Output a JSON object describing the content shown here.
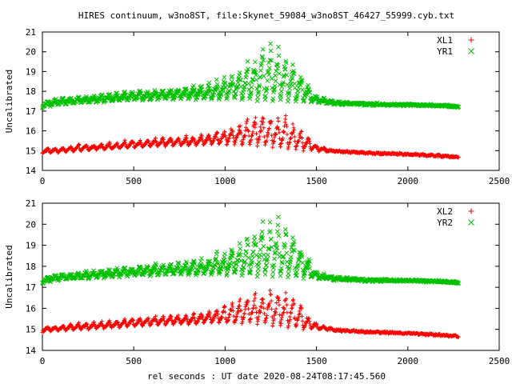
{
  "figure": {
    "title": "HIRES continuum, w3no8ST, file:Skynet_59084_w3no8ST_46427_55999.cyb.txt",
    "xlabel": "rel seconds : UT date 2020-08-24T08:17:45.560"
  },
  "colors": {
    "red": "#ff0000",
    "green": "#00c000"
  },
  "chart_data": [
    {
      "type": "scatter",
      "ylabel": "Uncalibrated",
      "xlim": [
        0,
        2500
      ],
      "ylim": [
        14,
        21
      ],
      "xticks": [
        "0",
        "500",
        "1000",
        "1500",
        "2000",
        "2500"
      ],
      "yticks": [
        "14",
        "15",
        "16",
        "17",
        "18",
        "19",
        "20",
        "21"
      ],
      "legend_position": "top-right",
      "x": [
        0,
        100,
        200,
        300,
        400,
        500,
        600,
        700,
        800,
        900,
        1000,
        1050,
        1100,
        1150,
        1200,
        1250,
        1300,
        1350,
        1400,
        1450,
        1500,
        1600,
        1800,
        2000,
        2200,
        2280
      ],
      "series": [
        {
          "name": "XL1",
          "marker": "+",
          "color": "red",
          "baseline": [
            14.9,
            14.9,
            15.0,
            15.05,
            15.1,
            15.15,
            15.2,
            15.25,
            15.25,
            15.3,
            15.3,
            15.3,
            15.3,
            15.3,
            15.25,
            15.2,
            15.15,
            15.1,
            15.05,
            15.0,
            15.0,
            14.95,
            14.85,
            14.8,
            14.7,
            14.65
          ],
          "peak": [
            15.1,
            15.2,
            15.3,
            15.35,
            15.45,
            15.55,
            15.65,
            15.7,
            15.75,
            15.9,
            16.2,
            16.4,
            16.6,
            16.85,
            17.0,
            17.05,
            17.0,
            16.8,
            16.4,
            15.9,
            15.3,
            15.0,
            14.9,
            14.85,
            14.75,
            14.7
          ]
        },
        {
          "name": "YR1",
          "marker": "x",
          "color": "green",
          "baseline": [
            17.2,
            17.35,
            17.4,
            17.45,
            17.5,
            17.55,
            17.55,
            17.6,
            17.6,
            17.6,
            17.6,
            17.6,
            17.55,
            17.55,
            17.55,
            17.5,
            17.5,
            17.5,
            17.45,
            17.45,
            17.4,
            17.35,
            17.3,
            17.3,
            17.25,
            17.2
          ],
          "peak": [
            17.5,
            17.7,
            17.75,
            17.85,
            17.95,
            18.05,
            18.15,
            18.25,
            18.3,
            18.45,
            18.9,
            19.1,
            19.5,
            19.9,
            20.35,
            20.6,
            20.45,
            20.05,
            19.4,
            18.6,
            17.8,
            17.5,
            17.4,
            17.35,
            17.3,
            17.25
          ]
        }
      ]
    },
    {
      "type": "scatter",
      "ylabel": "Uncalibrated",
      "xlim": [
        0,
        2500
      ],
      "ylim": [
        14,
        21
      ],
      "xticks": [
        "0",
        "500",
        "1000",
        "1500",
        "2000",
        "2500"
      ],
      "yticks": [
        "14",
        "15",
        "16",
        "17",
        "18",
        "19",
        "20",
        "21"
      ],
      "legend_position": "top-right",
      "x": [
        0,
        100,
        200,
        300,
        400,
        500,
        600,
        700,
        800,
        900,
        1000,
        1050,
        1100,
        1150,
        1200,
        1250,
        1300,
        1350,
        1400,
        1450,
        1500,
        1600,
        1800,
        2000,
        2200,
        2280
      ],
      "series": [
        {
          "name": "XL2",
          "marker": "+",
          "color": "red",
          "baseline": [
            14.9,
            14.95,
            15.0,
            15.05,
            15.1,
            15.15,
            15.2,
            15.25,
            15.25,
            15.3,
            15.3,
            15.3,
            15.3,
            15.3,
            15.25,
            15.2,
            15.15,
            15.1,
            15.05,
            15.0,
            15.0,
            14.95,
            14.85,
            14.8,
            14.7,
            14.65
          ],
          "peak": [
            15.1,
            15.2,
            15.3,
            15.35,
            15.45,
            15.55,
            15.65,
            15.7,
            15.75,
            15.9,
            16.2,
            16.4,
            16.6,
            16.85,
            17.0,
            17.1,
            17.0,
            16.8,
            16.4,
            15.9,
            15.3,
            15.0,
            14.9,
            14.85,
            14.75,
            14.7
          ]
        },
        {
          "name": "YR2",
          "marker": "x",
          "color": "green",
          "baseline": [
            17.2,
            17.35,
            17.4,
            17.45,
            17.5,
            17.55,
            17.55,
            17.6,
            17.6,
            17.6,
            17.6,
            17.6,
            17.55,
            17.55,
            17.55,
            17.5,
            17.5,
            17.5,
            17.45,
            17.45,
            17.4,
            17.35,
            17.3,
            17.3,
            17.25,
            17.2
          ],
          "peak": [
            17.5,
            17.7,
            17.75,
            17.85,
            17.95,
            18.05,
            18.15,
            18.25,
            18.3,
            18.45,
            18.9,
            19.1,
            19.5,
            19.9,
            20.35,
            20.55,
            20.45,
            20.05,
            19.4,
            18.6,
            17.8,
            17.5,
            17.4,
            17.35,
            17.3,
            17.25
          ]
        }
      ]
    }
  ]
}
